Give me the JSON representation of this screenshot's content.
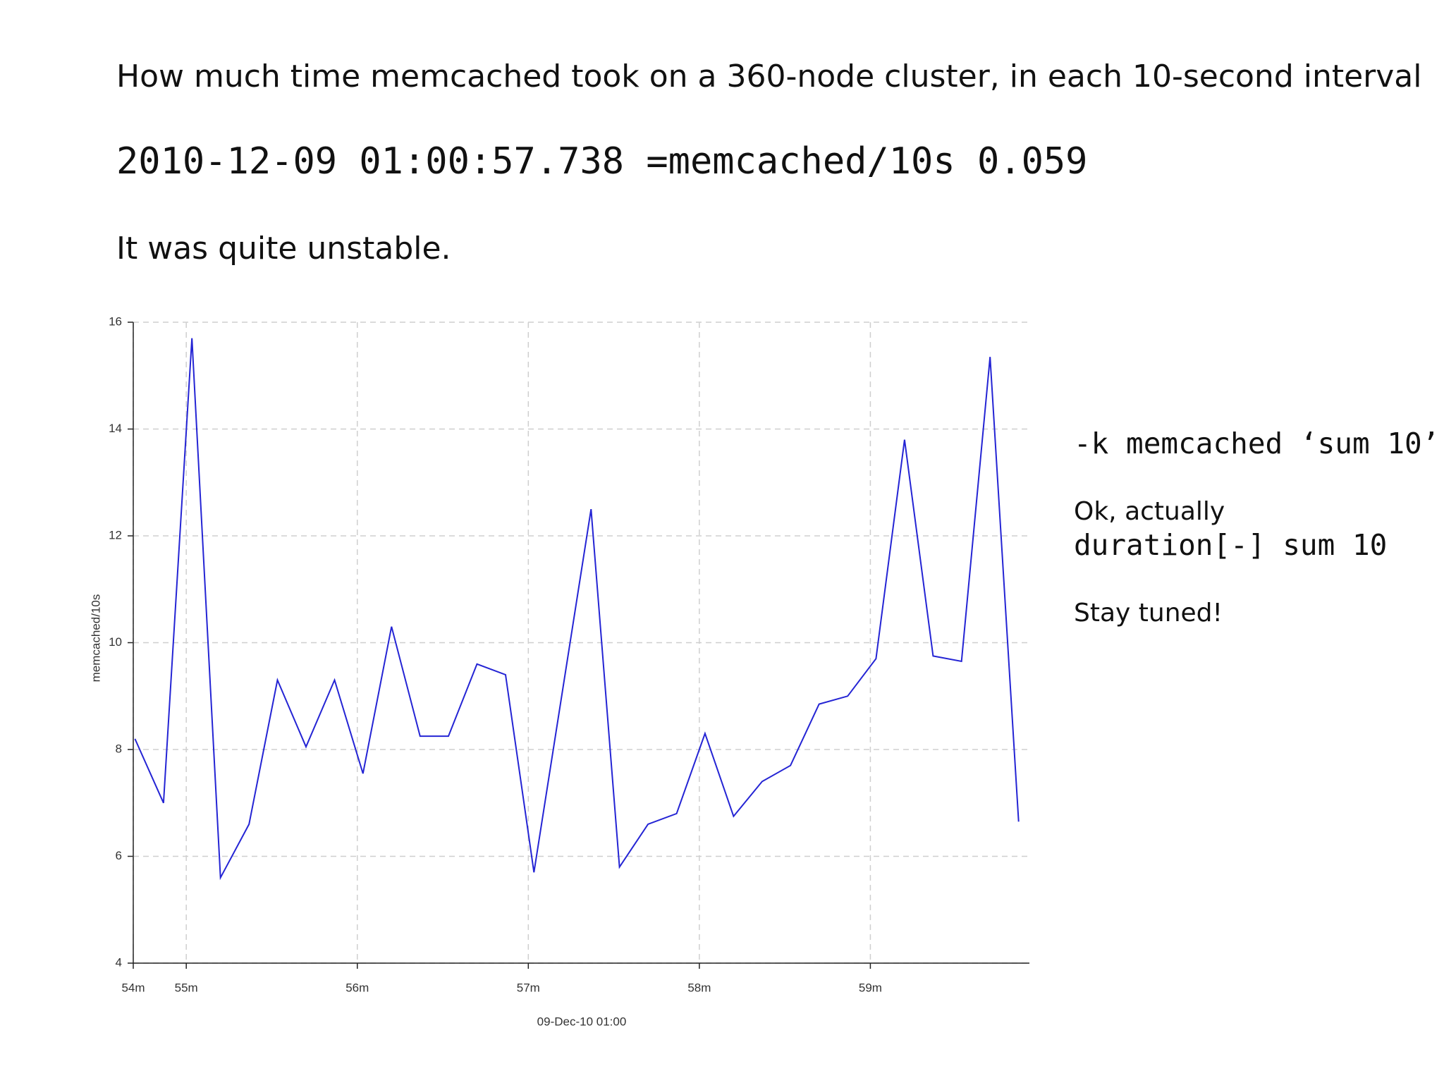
{
  "heading": "How much time memcached took on a 360-node cluster, in each 10-second interval",
  "sample": "2010-12-09 01:00:57.738 =memcached/10s 0.059",
  "remark": "It was quite unstable.",
  "notes": {
    "command": "-k memcached ‘sum 10’",
    "intro": "Ok, actually",
    "actual": "duration[-] sum 10",
    "closing": "Stay tuned!"
  },
  "chart_data": {
    "type": "line",
    "xlabel": "09-Dec-10 01:00",
    "ylabel": "memcached/10s",
    "x": [
      54.7,
      54.867,
      55.033,
      55.2,
      55.367,
      55.533,
      55.7,
      55.867,
      56.033,
      56.2,
      56.367,
      56.533,
      56.7,
      56.867,
      57.033,
      57.2,
      57.367,
      57.533,
      57.7,
      57.867,
      58.033,
      58.2,
      58.367,
      58.533,
      58.7,
      58.867,
      59.033,
      59.2,
      59.367,
      59.533,
      59.7,
      59.867
    ],
    "series": [
      {
        "name": "memcached/10s",
        "color": "#2424d4",
        "values": [
          8.2,
          7.0,
          15.7,
          5.6,
          6.6,
          9.3,
          8.05,
          9.3,
          7.55,
          10.3,
          8.25,
          8.25,
          9.6,
          9.4,
          5.7,
          9.1,
          12.5,
          5.8,
          6.6,
          6.8,
          8.3,
          6.75,
          7.4,
          7.7,
          8.85,
          9.0,
          9.7,
          13.8,
          9.75,
          9.65,
          15.35,
          6.65
        ]
      }
    ],
    "xlim": [
      54.69,
      59.93
    ],
    "xticks": [
      {
        "value": 54.69,
        "label": "54m"
      },
      {
        "value": 55,
        "label": "55m"
      },
      {
        "value": 56,
        "label": "56m"
      },
      {
        "value": 57,
        "label": "57m"
      },
      {
        "value": 58,
        "label": "58m"
      },
      {
        "value": 59,
        "label": "59m"
      }
    ],
    "ylim": [
      4,
      16
    ],
    "yticks": [
      4,
      6,
      8,
      10,
      12,
      14,
      16
    ],
    "grid": true
  }
}
